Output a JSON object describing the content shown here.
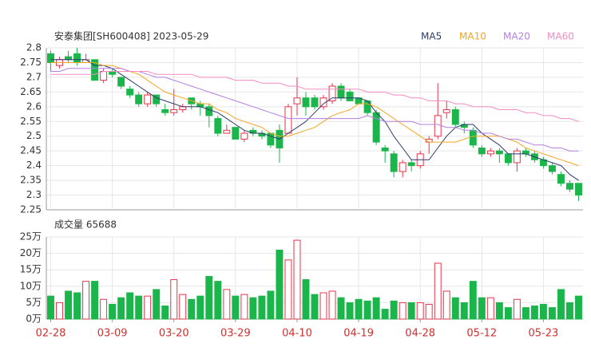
{
  "chart_data": [
    {
      "type": "candlestick",
      "title": "安泰集团[SH600408] 2023-05-29",
      "up_color": "#e8344a",
      "down_color": "#1bb64b",
      "open": [
        2.78,
        2.74,
        2.77,
        2.78,
        2.75,
        2.76,
        2.69,
        2.72,
        2.7,
        2.66,
        2.64,
        2.61,
        2.64,
        2.59,
        2.58,
        2.59,
        2.63,
        2.61,
        2.6,
        2.56,
        2.51,
        2.53,
        2.49,
        2.52,
        2.51,
        2.51,
        2.52,
        2.51,
        2.61,
        2.63,
        2.63,
        2.6,
        2.62,
        2.67,
        2.65,
        2.63,
        2.62,
        2.58,
        2.46,
        2.44,
        2.38,
        2.41,
        2.4,
        2.48,
        2.5,
        2.58,
        2.59,
        2.54,
        2.52,
        2.46,
        2.44,
        2.45,
        2.44,
        2.41,
        2.45,
        2.44,
        2.42,
        2.4,
        2.37,
        2.34,
        2.34
      ],
      "high": [
        2.79,
        2.77,
        2.79,
        2.8,
        2.78,
        2.76,
        2.73,
        2.73,
        2.7,
        2.67,
        2.65,
        2.65,
        2.64,
        2.61,
        2.66,
        2.61,
        2.63,
        2.62,
        2.61,
        2.57,
        2.54,
        2.53,
        2.52,
        2.53,
        2.52,
        2.51,
        2.54,
        2.61,
        2.7,
        2.65,
        2.64,
        2.64,
        2.68,
        2.68,
        2.66,
        2.63,
        2.62,
        2.59,
        2.47,
        2.45,
        2.42,
        2.42,
        2.45,
        2.5,
        2.68,
        2.62,
        2.6,
        2.55,
        2.53,
        2.47,
        2.46,
        2.46,
        2.44,
        2.46,
        2.46,
        2.45,
        2.43,
        2.41,
        2.38,
        2.35,
        2.34
      ],
      "low": [
        2.72,
        2.73,
        2.75,
        2.74,
        2.75,
        2.69,
        2.68,
        2.7,
        2.66,
        2.63,
        2.6,
        2.6,
        2.6,
        2.57,
        2.57,
        2.58,
        2.59,
        2.57,
        2.53,
        2.5,
        2.51,
        2.49,
        2.48,
        2.5,
        2.49,
        2.46,
        2.41,
        2.51,
        2.57,
        2.57,
        2.59,
        2.59,
        2.61,
        2.62,
        2.62,
        2.61,
        2.57,
        2.47,
        2.41,
        2.36,
        2.36,
        2.38,
        2.39,
        2.44,
        2.49,
        2.56,
        2.53,
        2.51,
        2.46,
        2.43,
        2.43,
        2.41,
        2.4,
        2.38,
        2.43,
        2.41,
        2.39,
        2.37,
        2.33,
        2.31,
        2.28
      ],
      "close": [
        2.75,
        2.76,
        2.76,
        2.75,
        2.76,
        2.69,
        2.72,
        2.71,
        2.67,
        2.64,
        2.61,
        2.64,
        2.61,
        2.58,
        2.59,
        2.6,
        2.61,
        2.6,
        2.57,
        2.51,
        2.52,
        2.49,
        2.51,
        2.51,
        2.5,
        2.47,
        2.46,
        2.6,
        2.63,
        2.6,
        2.6,
        2.63,
        2.67,
        2.63,
        2.62,
        2.61,
        2.58,
        2.48,
        2.45,
        2.38,
        2.41,
        2.4,
        2.44,
        2.49,
        2.57,
        2.59,
        2.54,
        2.53,
        2.47,
        2.44,
        2.45,
        2.44,
        2.41,
        2.45,
        2.44,
        2.42,
        2.4,
        2.38,
        2.34,
        2.32,
        2.3
      ],
      "series": [
        {
          "name": "MA5",
          "color": "#2d3a6e",
          "values": [
            2.76,
            2.76,
            2.76,
            2.76,
            2.76,
            2.74,
            2.74,
            2.73,
            2.71,
            2.69,
            2.67,
            2.65,
            2.63,
            2.62,
            2.61,
            2.6,
            2.6,
            2.6,
            2.59,
            2.58,
            2.56,
            2.54,
            2.52,
            2.51,
            2.51,
            2.5,
            2.49,
            2.51,
            2.53,
            2.55,
            2.58,
            2.61,
            2.63,
            2.63,
            2.63,
            2.63,
            2.62,
            2.58,
            2.55,
            2.5,
            2.46,
            2.42,
            2.42,
            2.42,
            2.46,
            2.5,
            2.53,
            2.54,
            2.54,
            2.51,
            2.49,
            2.47,
            2.44,
            2.44,
            2.44,
            2.43,
            2.42,
            2.41,
            2.4,
            2.37,
            2.35
          ]
        },
        {
          "name": "MA10",
          "color": "#f5a623",
          "values": [
            2.75,
            2.75,
            2.75,
            2.75,
            2.75,
            2.75,
            2.74,
            2.74,
            2.73,
            2.72,
            2.71,
            2.69,
            2.67,
            2.65,
            2.64,
            2.63,
            2.62,
            2.61,
            2.61,
            2.59,
            2.58,
            2.56,
            2.55,
            2.54,
            2.53,
            2.51,
            2.5,
            2.5,
            2.51,
            2.52,
            2.53,
            2.55,
            2.57,
            2.58,
            2.59,
            2.61,
            2.61,
            2.6,
            2.58,
            2.56,
            2.54,
            2.52,
            2.5,
            2.48,
            2.48,
            2.48,
            2.48,
            2.49,
            2.5,
            2.5,
            2.5,
            2.5,
            2.49,
            2.48,
            2.46,
            2.45,
            2.44,
            2.43,
            2.42,
            2.41,
            2.4
          ]
        },
        {
          "name": "MA20",
          "color": "#b57fe0",
          "values": [
            2.72,
            2.72,
            2.73,
            2.73,
            2.73,
            2.73,
            2.73,
            2.73,
            2.73,
            2.72,
            2.72,
            2.71,
            2.7,
            2.7,
            2.69,
            2.68,
            2.67,
            2.66,
            2.65,
            2.64,
            2.63,
            2.62,
            2.61,
            2.6,
            2.59,
            2.58,
            2.57,
            2.56,
            2.56,
            2.56,
            2.56,
            2.56,
            2.56,
            2.56,
            2.56,
            2.56,
            2.57,
            2.56,
            2.55,
            2.55,
            2.55,
            2.55,
            2.54,
            2.54,
            2.54,
            2.53,
            2.53,
            2.52,
            2.52,
            2.51,
            2.51,
            2.5,
            2.49,
            2.49,
            2.48,
            2.47,
            2.47,
            2.46,
            2.46,
            2.45,
            2.45
          ]
        },
        {
          "name": "MA60",
          "color": "#f58bc2",
          "values": [
            2.71,
            2.71,
            2.71,
            2.71,
            2.71,
            2.71,
            2.72,
            2.72,
            2.72,
            2.72,
            2.72,
            2.72,
            2.71,
            2.71,
            2.71,
            2.71,
            2.71,
            2.7,
            2.7,
            2.7,
            2.7,
            2.69,
            2.69,
            2.69,
            2.68,
            2.68,
            2.68,
            2.67,
            2.67,
            2.66,
            2.66,
            2.66,
            2.66,
            2.66,
            2.66,
            2.66,
            2.65,
            2.65,
            2.65,
            2.64,
            2.64,
            2.63,
            2.63,
            2.62,
            2.62,
            2.62,
            2.61,
            2.61,
            2.6,
            2.6,
            2.6,
            2.59,
            2.59,
            2.59,
            2.58,
            2.58,
            2.57,
            2.57,
            2.56,
            2.56,
            2.55
          ]
        }
      ],
      "ylim": [
        2.25,
        2.8
      ],
      "yticks": [
        2.25,
        2.3,
        2.35,
        2.4,
        2.45,
        2.5,
        2.55,
        2.6,
        2.65,
        2.7,
        2.75,
        2.8
      ],
      "grid": true
    },
    {
      "type": "bar",
      "title": "成交量 65688",
      "categories": [
        "02-28",
        null,
        null,
        null,
        null,
        null,
        null,
        "03-09",
        null,
        null,
        null,
        null,
        null,
        null,
        "03-20",
        null,
        null,
        null,
        null,
        null,
        null,
        "03-29",
        null,
        null,
        null,
        null,
        null,
        null,
        "04-10",
        null,
        null,
        null,
        null,
        null,
        null,
        "04-19",
        null,
        null,
        null,
        null,
        null,
        null,
        "04-28",
        null,
        null,
        null,
        null,
        null,
        null,
        "05-12",
        null,
        null,
        null,
        null,
        null,
        null,
        "05-23",
        null,
        null,
        null,
        null
      ],
      "values": [
        7,
        5,
        8.5,
        8,
        11.5,
        11.5,
        6,
        4.5,
        6.5,
        8,
        7,
        7,
        9,
        4,
        12,
        7.5,
        6,
        7,
        13,
        11.5,
        9,
        7,
        7.5,
        6.5,
        7,
        8.5,
        21,
        18,
        24,
        12,
        7.5,
        8,
        8.5,
        6.5,
        5,
        6,
        5.5,
        6.5,
        3,
        5.5,
        5,
        5,
        5,
        4.5,
        17,
        8.5,
        6.5,
        5,
        11.5,
        6.5,
        6.5,
        5,
        3.5,
        6,
        3.5,
        4,
        4.5,
        3.5,
        9,
        5,
        7
      ],
      "ylim": [
        0,
        25
      ],
      "yticks": [
        {
          "value": 0,
          "label": "0万"
        },
        {
          "value": 5,
          "label": "5万"
        },
        {
          "value": 10,
          "label": "10万"
        },
        {
          "value": 15,
          "label": "15万"
        },
        {
          "value": 20,
          "label": "20万"
        },
        {
          "value": 25,
          "label": "25万"
        }
      ],
      "grid": true
    }
  ]
}
